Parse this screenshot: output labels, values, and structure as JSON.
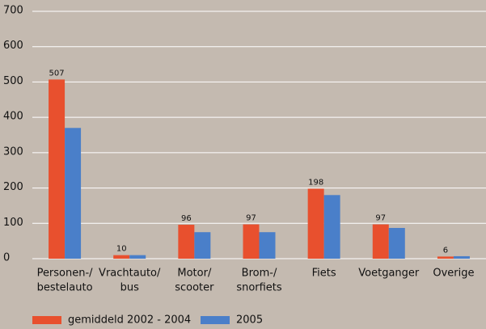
{
  "chart_data": {
    "type": "bar",
    "categories": [
      [
        "Personen-/",
        "bestelauto"
      ],
      [
        "Vrachtauto/",
        "bus"
      ],
      [
        "Motor/",
        "scooter"
      ],
      [
        "Brom-/",
        "snorfiets"
      ],
      [
        "Fiets"
      ],
      [
        "Voetganger"
      ],
      [
        "Overige"
      ]
    ],
    "series": [
      {
        "name": "gemiddeld 2002 - 2004",
        "color": "#e8502e",
        "values": [
          507,
          10,
          96,
          97,
          198,
          97,
          6
        ],
        "show_labels": true
      },
      {
        "name": "2005",
        "color": "#4a7fc9",
        "values": [
          370,
          10,
          75,
          75,
          180,
          87,
          7
        ],
        "show_labels": false
      }
    ],
    "ylim": [
      0,
      700
    ],
    "yticks": [
      0,
      100,
      200,
      300,
      400,
      500,
      600,
      700
    ],
    "grid": true,
    "legend": "bottom"
  }
}
